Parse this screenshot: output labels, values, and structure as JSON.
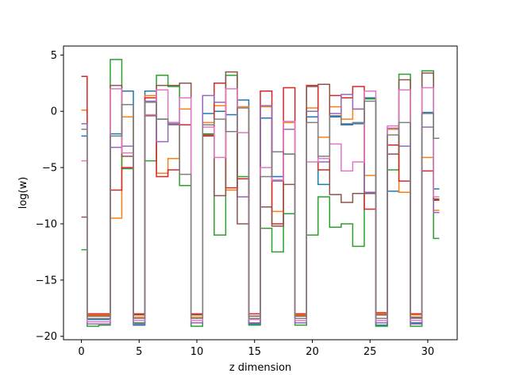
{
  "chart_data": {
    "type": "line",
    "drawstyle": "steps-mid",
    "title": "",
    "xlabel": "z dimension",
    "ylabel": "log(w)",
    "xlim": [
      -1.55,
      32.55
    ],
    "ylim": [
      -20.3,
      5.8
    ],
    "xticks": [
      0,
      5,
      10,
      15,
      20,
      25,
      30
    ],
    "yticks": [
      5,
      0,
      -5,
      -10,
      -15,
      -20
    ],
    "x": [
      0,
      1,
      2,
      3,
      4,
      5,
      6,
      7,
      8,
      9,
      10,
      11,
      12,
      13,
      14,
      15,
      16,
      17,
      18,
      19,
      20,
      21,
      22,
      23,
      24,
      25,
      26,
      27,
      28,
      29,
      30,
      31
    ],
    "series": [
      {
        "color": "#1f77b4",
        "values": [
          -2.2,
          -18.5,
          -18.5,
          -2.0,
          1.8,
          -19.0,
          1.8,
          -0.7,
          -1.0,
          -1.2,
          -18.8,
          -0.2,
          0.0,
          -0.3,
          1.0,
          -18.9,
          -0.6,
          -5.8,
          -3.8,
          -18.8,
          -0.5,
          -6.5,
          -0.5,
          -1.2,
          -1.1,
          1.2,
          -19.0,
          -7.1,
          -7.2,
          -18.8,
          -0.1,
          -6.9
        ]
      },
      {
        "color": "#ff7f0e",
        "values": [
          0.1,
          -18.1,
          -18.1,
          -9.5,
          -0.5,
          -18.3,
          1.4,
          -5.5,
          -4.2,
          0.2,
          -18.3,
          -1.0,
          0.5,
          -7.0,
          0.4,
          -18.2,
          0.4,
          -8.9,
          -1.0,
          -18.1,
          0.3,
          -2.3,
          0.4,
          -0.7,
          0.2,
          -5.7,
          -18.0,
          -1.6,
          -7.2,
          -18.1,
          -4.1,
          -8.8
        ]
      },
      {
        "color": "#2ca02c",
        "values": [
          -12.3,
          -19.1,
          -19.0,
          4.6,
          -5.1,
          -18.8,
          -4.4,
          3.2,
          2.2,
          -6.6,
          -19.1,
          -2.0,
          -11.0,
          3.2,
          -5.8,
          -19.0,
          -10.4,
          -12.5,
          -9.1,
          -19.0,
          -11.0,
          -7.6,
          -10.3,
          -10.0,
          -12.0,
          1.1,
          -19.1,
          -5.2,
          3.3,
          -19.1,
          3.6,
          -11.3
        ]
      },
      {
        "color": "#d62728",
        "values": [
          3.1,
          -18.0,
          -18.0,
          -7.0,
          -5.0,
          -18.0,
          1.2,
          -5.8,
          -5.2,
          -1.2,
          -18.0,
          -2.2,
          2.5,
          -6.8,
          -6.0,
          -18.0,
          1.8,
          -10.0,
          2.1,
          -18.0,
          2.3,
          -5.2,
          1.4,
          1.2,
          2.2,
          -8.7,
          -17.9,
          -3.0,
          -6.2,
          -18.0,
          -5.3,
          -7.9
        ]
      },
      {
        "color": "#9467bd",
        "values": [
          -1.1,
          -18.9,
          -18.9,
          -3.2,
          -3.1,
          -18.9,
          0.9,
          -2.7,
          -1.1,
          1.2,
          -18.8,
          1.4,
          0.8,
          -1.8,
          -7.6,
          -18.8,
          0.5,
          -6.2,
          -1.6,
          -18.8,
          0.0,
          -4.5,
          -0.2,
          1.5,
          0.2,
          -7.2,
          -18.8,
          -1.5,
          -3.1,
          -18.9,
          -1.4,
          -9.0
        ]
      },
      {
        "color": "#8c564b",
        "values": [
          -9.4,
          -18.2,
          -18.2,
          2.3,
          -4.0,
          -18.1,
          -0.4,
          2.3,
          2.3,
          2.5,
          -18.1,
          -2.1,
          -7.5,
          3.5,
          -10.0,
          -18.2,
          -8.5,
          -10.2,
          -6.5,
          -18.2,
          2.2,
          2.4,
          -7.4,
          -8.1,
          -7.3,
          -7.3,
          -18.1,
          -3.8,
          2.8,
          -18.3,
          3.4,
          -7.8
        ]
      },
      {
        "color": "#e377c2",
        "values": [
          -4.4,
          -18.7,
          -18.7,
          2.0,
          -3.7,
          -18.6,
          -0.3,
          1.9,
          -1.0,
          1.2,
          -18.6,
          -1.4,
          -4.1,
          2.0,
          -1.9,
          -18.5,
          -5.0,
          -6.1,
          -0.9,
          -18.6,
          -4.5,
          -4.2,
          -2.9,
          -5.3,
          -4.5,
          1.8,
          -18.6,
          -1.3,
          1.9,
          -18.6,
          2.1,
          -7.6
        ]
      },
      {
        "color": "#7f7f7f",
        "values": [
          -1.6,
          -18.4,
          -18.4,
          -2.2,
          0.6,
          -18.4,
          0.8,
          -0.7,
          -1.2,
          -5.6,
          -18.4,
          -1.2,
          -0.7,
          -1.8,
          0.3,
          -18.4,
          -5.8,
          -3.6,
          -3.8,
          -18.4,
          -1.0,
          -4.0,
          -0.4,
          -1.1,
          -1.0,
          0.9,
          -18.4,
          -2.1,
          -1.0,
          -18.4,
          -0.2,
          -2.4
        ]
      }
    ]
  }
}
